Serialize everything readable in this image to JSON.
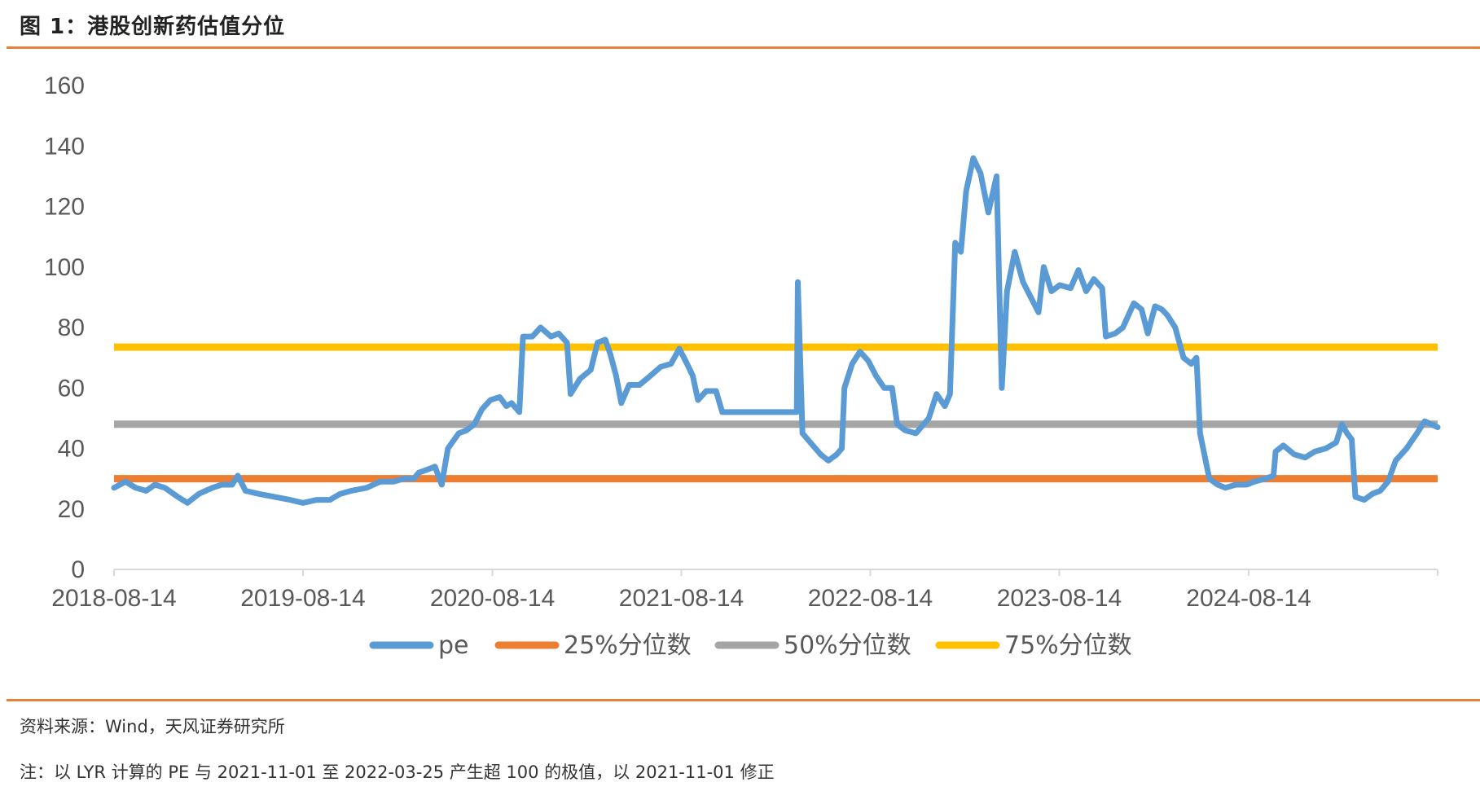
{
  "figure_title": "图 1：港股创新药估值分位",
  "source_text": "资料来源：Wind，天风证券研究所",
  "note_text": "注：以 LYR 计算的 PE 与 2021-11-01 至 2022-03-25 产生超 100 的极值，以 2021-11-01 修正",
  "colors": {
    "pe": "#5B9BD5",
    "p25": "#ED7D31",
    "p50": "#A5A5A5",
    "p75": "#FFC000",
    "rule": "#E8803A"
  },
  "chart_data": {
    "type": "line",
    "xlabel": "",
    "ylabel": "",
    "ylim": [
      0,
      160
    ],
    "yticks": [
      0,
      20,
      40,
      60,
      80,
      100,
      120,
      140,
      160
    ],
    "xlim": [
      "2018-08-14",
      "2025-08-14"
    ],
    "xticks": [
      "2018-08-14",
      "2019-08-14",
      "2020-08-14",
      "2021-08-14",
      "2022-08-14",
      "2023-08-14",
      "2024-08-14"
    ],
    "grid": false,
    "legend_position": "bottom",
    "series": [
      {
        "name": "pe",
        "color": "#5B9BD5",
        "points": [
          [
            "2018-08-14",
            27
          ],
          [
            "2018-09-05",
            29
          ],
          [
            "2018-09-25",
            27
          ],
          [
            "2018-10-15",
            26
          ],
          [
            "2018-11-01",
            28
          ],
          [
            "2018-11-20",
            27
          ],
          [
            "2018-12-15",
            24
          ],
          [
            "2019-01-03",
            22
          ],
          [
            "2019-01-25",
            25
          ],
          [
            "2019-02-20",
            27
          ],
          [
            "2019-03-10",
            28
          ],
          [
            "2019-03-30",
            28
          ],
          [
            "2019-04-10",
            31
          ],
          [
            "2019-04-25",
            26
          ],
          [
            "2019-05-20",
            25
          ],
          [
            "2019-06-20",
            24
          ],
          [
            "2019-07-20",
            23
          ],
          [
            "2019-08-14",
            22
          ],
          [
            "2019-09-10",
            23
          ],
          [
            "2019-10-05",
            23
          ],
          [
            "2019-10-25",
            25
          ],
          [
            "2019-11-15",
            26
          ],
          [
            "2019-12-15",
            27
          ],
          [
            "2020-01-10",
            29
          ],
          [
            "2020-02-05",
            29
          ],
          [
            "2020-02-25",
            30
          ],
          [
            "2020-03-15",
            30
          ],
          [
            "2020-03-25",
            32
          ],
          [
            "2020-04-10",
            33
          ],
          [
            "2020-04-25",
            34
          ],
          [
            "2020-05-08",
            28
          ],
          [
            "2020-05-20",
            40
          ],
          [
            "2020-06-10",
            45
          ],
          [
            "2020-06-25",
            46
          ],
          [
            "2020-07-10",
            48
          ],
          [
            "2020-07-25",
            53
          ],
          [
            "2020-08-10",
            56
          ],
          [
            "2020-08-28",
            57
          ],
          [
            "2020-09-10",
            54
          ],
          [
            "2020-09-20",
            55
          ],
          [
            "2020-10-05",
            52
          ],
          [
            "2020-10-12",
            77
          ],
          [
            "2020-10-30",
            77
          ],
          [
            "2020-11-15",
            80
          ],
          [
            "2020-12-05",
            77
          ],
          [
            "2020-12-20",
            78
          ],
          [
            "2021-01-05",
            75
          ],
          [
            "2021-01-12",
            58
          ],
          [
            "2021-01-30",
            63
          ],
          [
            "2021-02-20",
            66
          ],
          [
            "2021-03-05",
            75
          ],
          [
            "2021-03-20",
            76
          ],
          [
            "2021-03-30",
            71
          ],
          [
            "2021-04-10",
            64
          ],
          [
            "2021-04-20",
            55
          ],
          [
            "2021-05-05",
            61
          ],
          [
            "2021-05-25",
            61
          ],
          [
            "2021-06-15",
            64
          ],
          [
            "2021-07-05",
            67
          ],
          [
            "2021-07-25",
            68
          ],
          [
            "2021-08-10",
            73
          ],
          [
            "2021-08-25",
            68
          ],
          [
            "2021-09-05",
            64
          ],
          [
            "2021-09-15",
            56
          ],
          [
            "2021-10-01",
            59
          ],
          [
            "2021-10-20",
            59
          ],
          [
            "2021-11-01",
            52
          ],
          [
            "2022-03-25",
            52
          ],
          [
            "2022-03-27",
            95
          ],
          [
            "2022-03-31",
            72
          ],
          [
            "2022-04-05",
            45
          ],
          [
            "2022-04-20",
            42
          ],
          [
            "2022-05-10",
            38
          ],
          [
            "2022-05-25",
            36
          ],
          [
            "2022-06-10",
            38
          ],
          [
            "2022-06-20",
            40
          ],
          [
            "2022-06-25",
            60
          ],
          [
            "2022-07-10",
            68
          ],
          [
            "2022-07-25",
            72
          ],
          [
            "2022-08-10",
            69
          ],
          [
            "2022-08-25",
            64
          ],
          [
            "2022-09-10",
            60
          ],
          [
            "2022-09-25",
            60
          ],
          [
            "2022-10-05",
            48
          ],
          [
            "2022-10-20",
            46
          ],
          [
            "2022-11-10",
            45
          ],
          [
            "2022-11-20",
            47
          ],
          [
            "2022-12-05",
            50
          ],
          [
            "2022-12-20",
            58
          ],
          [
            "2023-01-05",
            54
          ],
          [
            "2023-01-15",
            58
          ],
          [
            "2023-01-25",
            108
          ],
          [
            "2023-02-05",
            105
          ],
          [
            "2023-02-15",
            125
          ],
          [
            "2023-03-01",
            136
          ],
          [
            "2023-03-15",
            131
          ],
          [
            "2023-03-30",
            118
          ],
          [
            "2023-04-15",
            130
          ],
          [
            "2023-04-25",
            60
          ],
          [
            "2023-05-05",
            92
          ],
          [
            "2023-05-20",
            105
          ],
          [
            "2023-06-05",
            95
          ],
          [
            "2023-06-20",
            90
          ],
          [
            "2023-07-05",
            85
          ],
          [
            "2023-07-15",
            100
          ],
          [
            "2023-07-30",
            92
          ],
          [
            "2023-08-15",
            94
          ],
          [
            "2023-09-05",
            93
          ],
          [
            "2023-09-20",
            99
          ],
          [
            "2023-10-05",
            92
          ],
          [
            "2023-10-20",
            96
          ],
          [
            "2023-11-05",
            93
          ],
          [
            "2023-11-12",
            77
          ],
          [
            "2023-11-30",
            78
          ],
          [
            "2023-12-15",
            80
          ],
          [
            "2024-01-05",
            88
          ],
          [
            "2024-01-20",
            86
          ],
          [
            "2024-02-01",
            78
          ],
          [
            "2024-02-15",
            87
          ],
          [
            "2024-02-28",
            86
          ],
          [
            "2024-03-10",
            84
          ],
          [
            "2024-03-25",
            80
          ],
          [
            "2024-04-10",
            70
          ],
          [
            "2024-04-25",
            68
          ],
          [
            "2024-05-05",
            70
          ],
          [
            "2024-05-12",
            45
          ],
          [
            "2024-05-30",
            30
          ],
          [
            "2024-06-15",
            28
          ],
          [
            "2024-06-30",
            27
          ],
          [
            "2024-07-20",
            28
          ],
          [
            "2024-08-10",
            28
          ],
          [
            "2024-08-25",
            29
          ],
          [
            "2024-09-15",
            30
          ],
          [
            "2024-10-01",
            31
          ],
          [
            "2024-10-05",
            39
          ],
          [
            "2024-10-20",
            41
          ],
          [
            "2024-11-10",
            38
          ],
          [
            "2024-12-01",
            37
          ],
          [
            "2024-12-20",
            39
          ],
          [
            "2025-01-10",
            40
          ],
          [
            "2025-01-30",
            42
          ],
          [
            "2025-02-10",
            48
          ],
          [
            "2025-02-20",
            45
          ],
          [
            "2025-03-01",
            43
          ],
          [
            "2025-03-08",
            24
          ],
          [
            "2025-03-25",
            23
          ],
          [
            "2025-04-10",
            25
          ],
          [
            "2025-04-25",
            26
          ],
          [
            "2025-05-10",
            29
          ],
          [
            "2025-05-25",
            36
          ],
          [
            "2025-06-15",
            40
          ],
          [
            "2025-07-05",
            45
          ],
          [
            "2025-07-20",
            49
          ],
          [
            "2025-08-14",
            47
          ]
        ]
      },
      {
        "name": "25%分位数",
        "color": "#ED7D31",
        "constant": 30
      },
      {
        "name": "50%分位数",
        "color": "#A5A5A5",
        "constant": 48
      },
      {
        "name": "75%分位数",
        "color": "#FFC000",
        "constant": 73.5
      }
    ]
  }
}
